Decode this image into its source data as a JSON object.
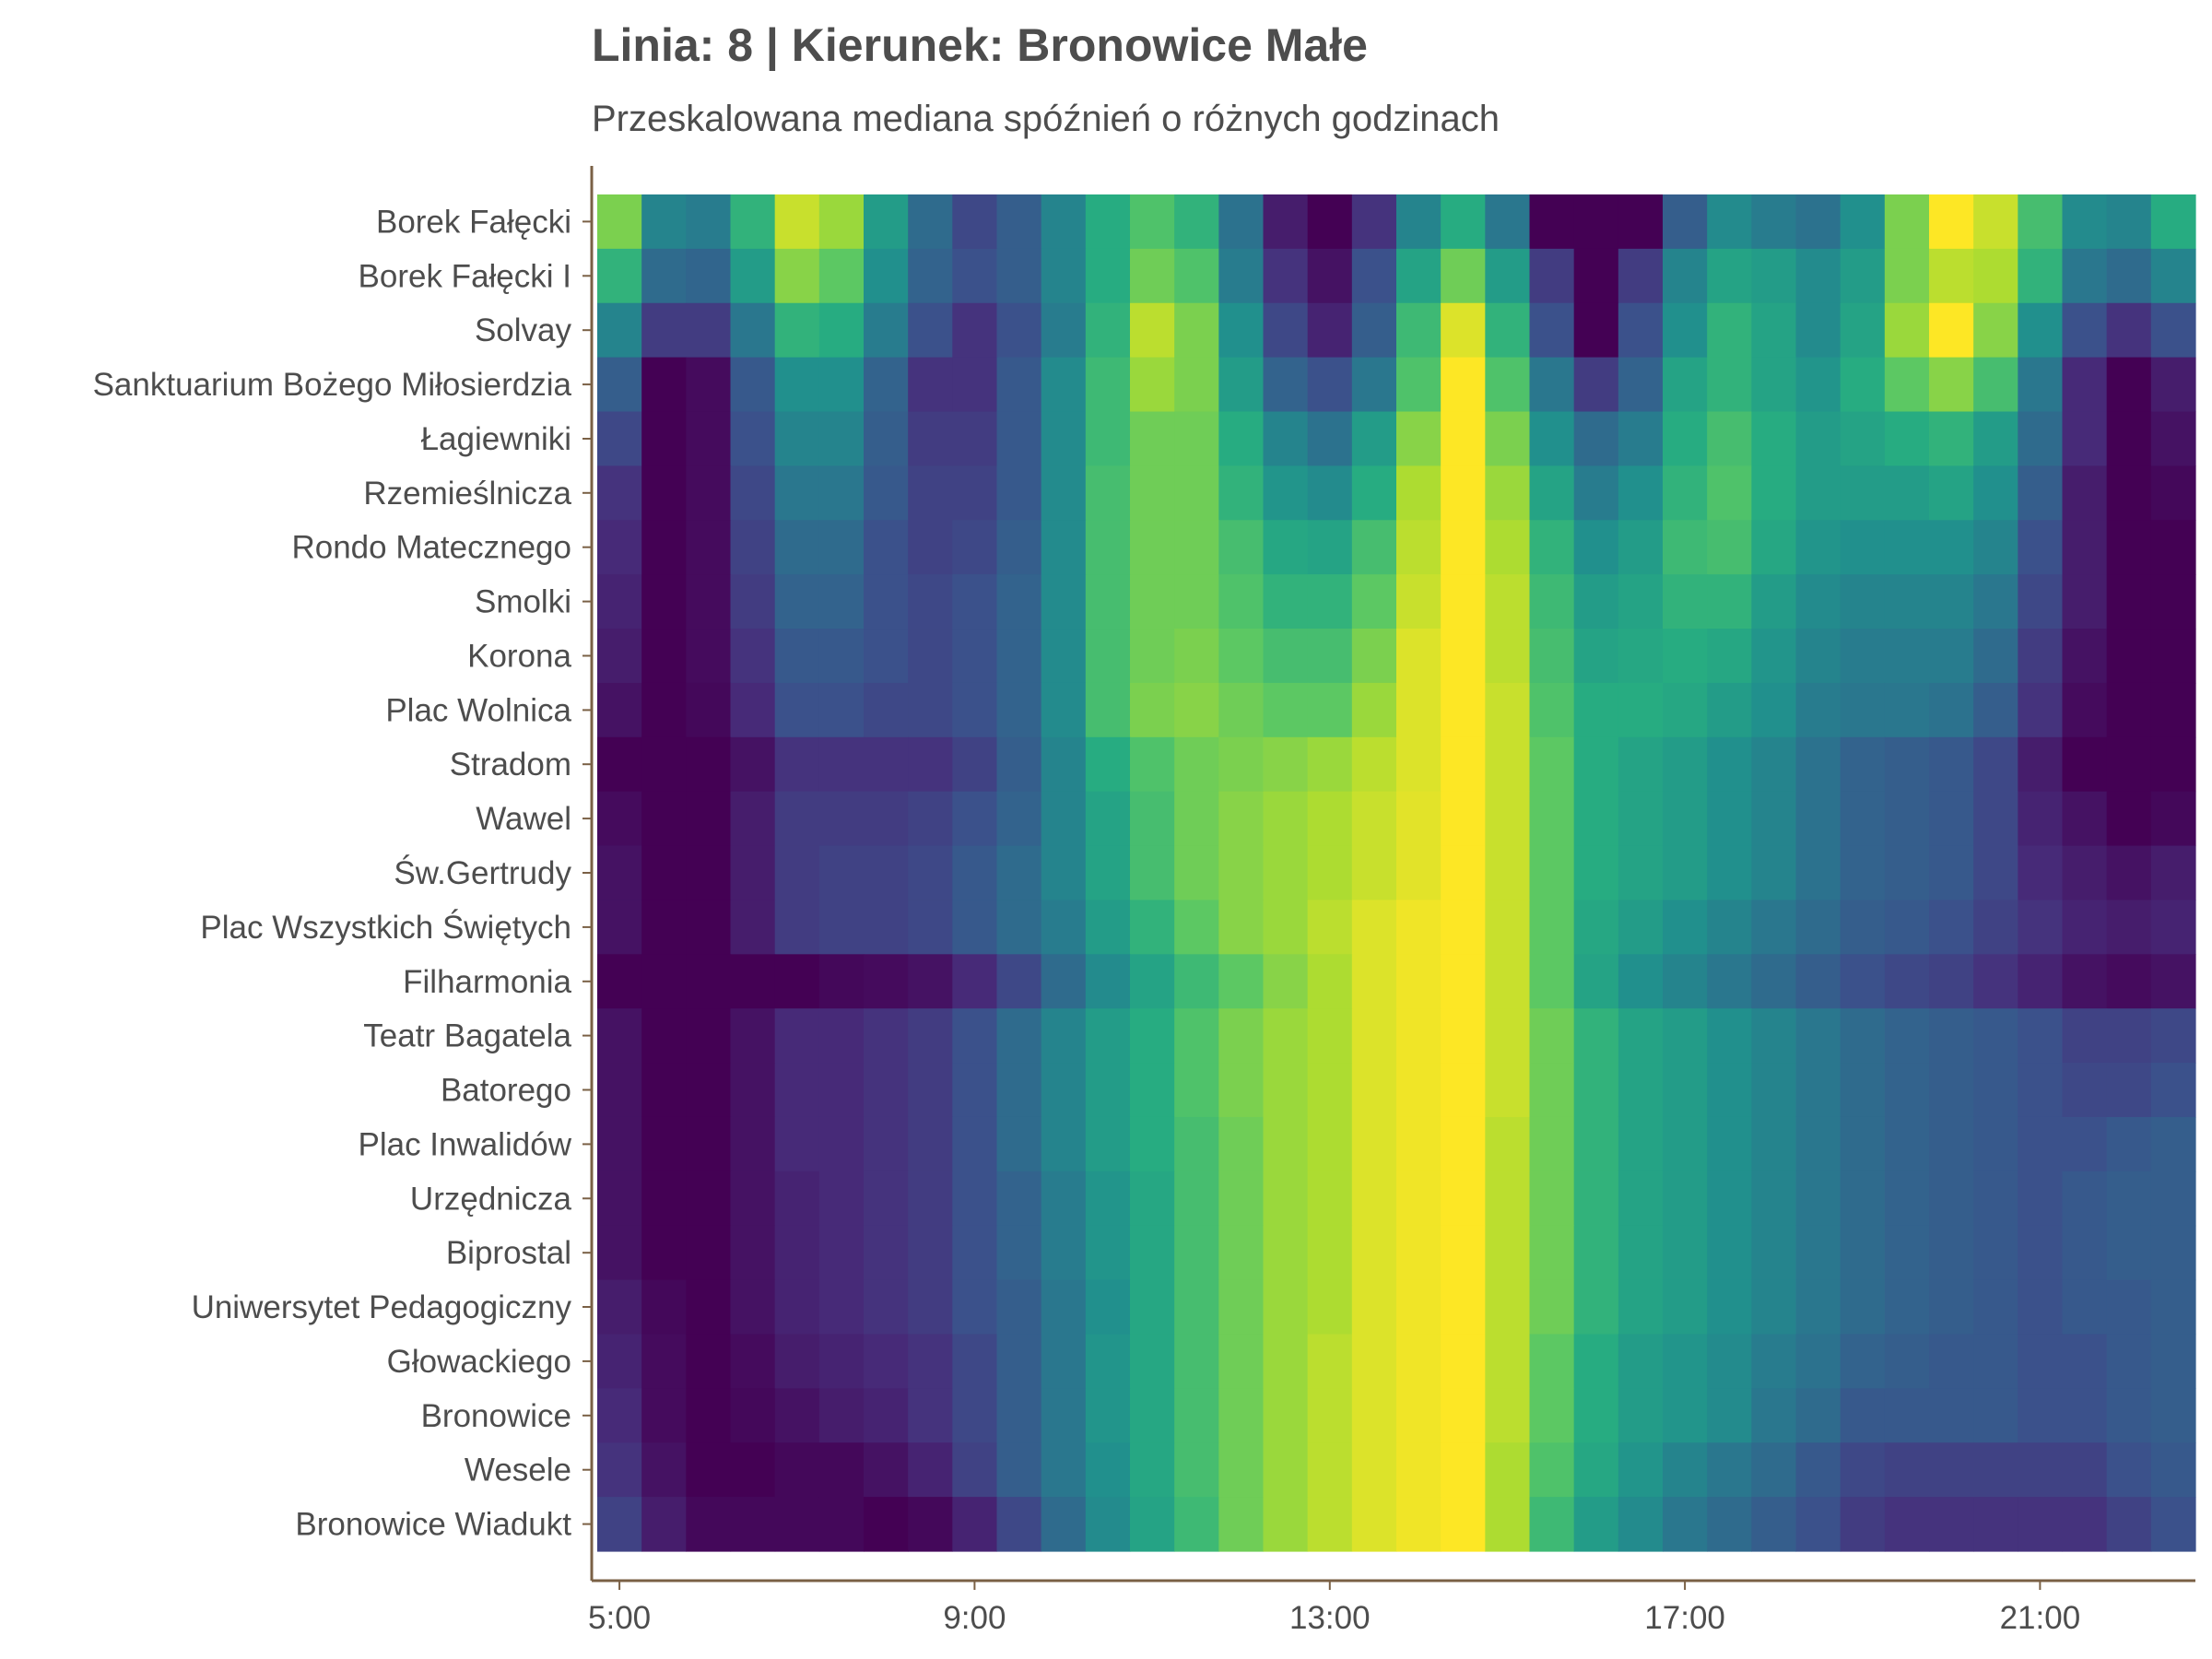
{
  "chart_data": {
    "type": "heatmap",
    "title": "Linia: 8 | Kierunek: Bronowice Małe",
    "subtitle": "Przeskalowana mediana spóźnień o różnych godzinach",
    "colormap": "viridis",
    "x_start_hour": 5,
    "x_step_hours": 0.5,
    "x_ticks": [
      {
        "hour": 5,
        "label": "5:00"
      },
      {
        "hour": 9,
        "label": "9:00"
      },
      {
        "hour": 13,
        "label": "13:00"
      },
      {
        "hour": 17,
        "label": "17:00"
      },
      {
        "hour": 21,
        "label": "21:00"
      }
    ],
    "stops": [
      "Borek Fałęcki",
      "Borek Fałęcki I",
      "Solvay",
      "Sanktuarium Bożego Miłosierdzia",
      "Łagiewniki",
      "Rzemieślnicza",
      "Rondo Matecznego",
      "Smolki",
      "Korona",
      "Plac Wolnica",
      "Stradom",
      "Wawel",
      "Św.Gertrudy",
      "Plac Wszystkich Świętych",
      "Filharmonia",
      "Teatr Bagatela",
      "Batorego",
      "Plac Inwalidów",
      "Urzędnicza",
      "Biprostal",
      "Uniwersytet Pedagogiczny",
      "Głowackiego",
      "Bronowice",
      "Wesele",
      "Bronowice Wiadukt"
    ],
    "values": [
      [
        0.8,
        0.45,
        0.42,
        0.65,
        0.92,
        0.85,
        0.55,
        0.35,
        0.22,
        0.3,
        0.45,
        0.62,
        0.72,
        0.65,
        0.38,
        0.08,
        0.0,
        0.15,
        0.45,
        0.62,
        0.4,
        0.0,
        0.0,
        0.0,
        0.3,
        0.48,
        0.42,
        0.38,
        0.5,
        0.8,
        1.0,
        0.92,
        0.7,
        0.48,
        0.45,
        0.62
      ],
      [
        0.65,
        0.35,
        0.33,
        0.55,
        0.82,
        0.75,
        0.5,
        0.32,
        0.25,
        0.3,
        0.45,
        0.62,
        0.78,
        0.72,
        0.42,
        0.15,
        0.05,
        0.25,
        0.58,
        0.78,
        0.55,
        0.18,
        0.0,
        0.18,
        0.45,
        0.58,
        0.55,
        0.48,
        0.55,
        0.8,
        0.9,
        0.88,
        0.65,
        0.4,
        0.35,
        0.45
      ],
      [
        0.45,
        0.18,
        0.18,
        0.4,
        0.65,
        0.62,
        0.42,
        0.25,
        0.15,
        0.25,
        0.42,
        0.65,
        0.9,
        0.8,
        0.5,
        0.22,
        0.1,
        0.3,
        0.68,
        0.95,
        0.65,
        0.25,
        0.0,
        0.25,
        0.5,
        0.65,
        0.58,
        0.48,
        0.58,
        0.85,
        1.0,
        0.82,
        0.5,
        0.25,
        0.15,
        0.25
      ],
      [
        0.3,
        0.0,
        0.03,
        0.28,
        0.5,
        0.5,
        0.32,
        0.15,
        0.15,
        0.28,
        0.48,
        0.68,
        0.85,
        0.8,
        0.55,
        0.32,
        0.25,
        0.4,
        0.72,
        1.0,
        0.72,
        0.4,
        0.18,
        0.32,
        0.58,
        0.65,
        0.58,
        0.52,
        0.62,
        0.75,
        0.82,
        0.7,
        0.4,
        0.12,
        0.0,
        0.08
      ],
      [
        0.22,
        0.0,
        0.03,
        0.25,
        0.45,
        0.45,
        0.3,
        0.18,
        0.18,
        0.28,
        0.48,
        0.68,
        0.78,
        0.78,
        0.62,
        0.45,
        0.38,
        0.55,
        0.82,
        1.0,
        0.8,
        0.5,
        0.35,
        0.42,
        0.62,
        0.7,
        0.62,
        0.55,
        0.58,
        0.62,
        0.65,
        0.55,
        0.35,
        0.12,
        0.0,
        0.05
      ],
      [
        0.15,
        0.0,
        0.03,
        0.22,
        0.4,
        0.4,
        0.28,
        0.2,
        0.2,
        0.28,
        0.48,
        0.7,
        0.78,
        0.78,
        0.65,
        0.52,
        0.48,
        0.62,
        0.88,
        1.0,
        0.85,
        0.58,
        0.42,
        0.5,
        0.65,
        0.72,
        0.62,
        0.55,
        0.55,
        0.55,
        0.58,
        0.5,
        0.3,
        0.08,
        0.0,
        0.02
      ],
      [
        0.12,
        0.0,
        0.03,
        0.2,
        0.35,
        0.35,
        0.25,
        0.2,
        0.22,
        0.3,
        0.48,
        0.7,
        0.78,
        0.78,
        0.7,
        0.6,
        0.58,
        0.7,
        0.9,
        1.0,
        0.88,
        0.65,
        0.5,
        0.55,
        0.68,
        0.7,
        0.6,
        0.52,
        0.5,
        0.5,
        0.5,
        0.45,
        0.25,
        0.08,
        0.0,
        0.0
      ],
      [
        0.1,
        0.0,
        0.03,
        0.18,
        0.32,
        0.32,
        0.25,
        0.22,
        0.25,
        0.32,
        0.48,
        0.7,
        0.78,
        0.78,
        0.72,
        0.65,
        0.65,
        0.75,
        0.92,
        1.0,
        0.9,
        0.68,
        0.55,
        0.58,
        0.65,
        0.65,
        0.55,
        0.48,
        0.45,
        0.45,
        0.45,
        0.4,
        0.22,
        0.08,
        0.0,
        0.0
      ],
      [
        0.08,
        0.0,
        0.03,
        0.15,
        0.28,
        0.28,
        0.25,
        0.22,
        0.25,
        0.32,
        0.48,
        0.7,
        0.78,
        0.8,
        0.75,
        0.7,
        0.7,
        0.8,
        0.95,
        1.0,
        0.9,
        0.7,
        0.58,
        0.6,
        0.62,
        0.6,
        0.52,
        0.45,
        0.42,
        0.42,
        0.42,
        0.35,
        0.18,
        0.05,
        0.0,
        0.0
      ],
      [
        0.05,
        0.0,
        0.02,
        0.12,
        0.25,
        0.25,
        0.22,
        0.22,
        0.25,
        0.32,
        0.48,
        0.7,
        0.8,
        0.82,
        0.78,
        0.75,
        0.75,
        0.85,
        0.95,
        1.0,
        0.92,
        0.72,
        0.62,
        0.62,
        0.6,
        0.55,
        0.5,
        0.42,
        0.4,
        0.4,
        0.38,
        0.3,
        0.15,
        0.03,
        0.0,
        0.0
      ],
      [
        0.0,
        0.0,
        0.0,
        0.05,
        0.15,
        0.15,
        0.15,
        0.15,
        0.2,
        0.3,
        0.45,
        0.62,
        0.72,
        0.78,
        0.8,
        0.82,
        0.85,
        0.9,
        0.95,
        1.0,
        0.92,
        0.75,
        0.62,
        0.58,
        0.55,
        0.5,
        0.45,
        0.38,
        0.32,
        0.3,
        0.28,
        0.22,
        0.08,
        0.0,
        0.0,
        0.0
      ],
      [
        0.03,
        0.0,
        0.0,
        0.08,
        0.18,
        0.18,
        0.18,
        0.2,
        0.25,
        0.32,
        0.45,
        0.58,
        0.7,
        0.78,
        0.82,
        0.85,
        0.88,
        0.92,
        0.96,
        1.0,
        0.92,
        0.75,
        0.62,
        0.58,
        0.55,
        0.5,
        0.45,
        0.38,
        0.32,
        0.3,
        0.28,
        0.22,
        0.1,
        0.05,
        0.0,
        0.02
      ],
      [
        0.05,
        0.0,
        0.0,
        0.08,
        0.18,
        0.2,
        0.2,
        0.22,
        0.28,
        0.35,
        0.45,
        0.58,
        0.7,
        0.78,
        0.82,
        0.85,
        0.88,
        0.92,
        0.96,
        1.0,
        0.92,
        0.75,
        0.62,
        0.58,
        0.55,
        0.5,
        0.45,
        0.38,
        0.32,
        0.3,
        0.28,
        0.22,
        0.12,
        0.08,
        0.05,
        0.08
      ],
      [
        0.05,
        0.0,
        0.0,
        0.08,
        0.18,
        0.2,
        0.2,
        0.22,
        0.28,
        0.35,
        0.42,
        0.55,
        0.65,
        0.75,
        0.82,
        0.85,
        0.9,
        0.95,
        0.98,
        1.0,
        0.92,
        0.75,
        0.6,
        0.55,
        0.5,
        0.45,
        0.4,
        0.35,
        0.3,
        0.28,
        0.25,
        0.2,
        0.15,
        0.1,
        0.08,
        0.1
      ],
      [
        0.0,
        0.0,
        0.0,
        0.0,
        0.0,
        0.02,
        0.03,
        0.05,
        0.12,
        0.22,
        0.35,
        0.48,
        0.58,
        0.68,
        0.75,
        0.82,
        0.88,
        0.95,
        0.98,
        1.0,
        0.92,
        0.75,
        0.58,
        0.5,
        0.45,
        0.4,
        0.35,
        0.3,
        0.25,
        0.22,
        0.2,
        0.15,
        0.1,
        0.05,
        0.03,
        0.05
      ],
      [
        0.05,
        0.0,
        0.0,
        0.05,
        0.12,
        0.12,
        0.15,
        0.18,
        0.25,
        0.35,
        0.45,
        0.55,
        0.62,
        0.72,
        0.8,
        0.85,
        0.88,
        0.95,
        0.98,
        1.0,
        0.92,
        0.78,
        0.65,
        0.58,
        0.55,
        0.5,
        0.45,
        0.4,
        0.35,
        0.32,
        0.3,
        0.28,
        0.25,
        0.2,
        0.2,
        0.22
      ],
      [
        0.05,
        0.0,
        0.0,
        0.05,
        0.12,
        0.12,
        0.15,
        0.18,
        0.25,
        0.35,
        0.45,
        0.55,
        0.62,
        0.72,
        0.8,
        0.85,
        0.88,
        0.95,
        0.98,
        1.0,
        0.92,
        0.78,
        0.65,
        0.58,
        0.55,
        0.5,
        0.45,
        0.4,
        0.35,
        0.32,
        0.3,
        0.28,
        0.25,
        0.22,
        0.22,
        0.25
      ],
      [
        0.05,
        0.0,
        0.0,
        0.05,
        0.12,
        0.12,
        0.15,
        0.18,
        0.25,
        0.35,
        0.45,
        0.55,
        0.62,
        0.7,
        0.78,
        0.85,
        0.88,
        0.95,
        0.98,
        1.0,
        0.9,
        0.78,
        0.65,
        0.58,
        0.55,
        0.5,
        0.45,
        0.4,
        0.35,
        0.32,
        0.3,
        0.28,
        0.25,
        0.25,
        0.28,
        0.3
      ],
      [
        0.05,
        0.0,
        0.0,
        0.05,
        0.1,
        0.12,
        0.15,
        0.18,
        0.25,
        0.32,
        0.42,
        0.52,
        0.6,
        0.7,
        0.78,
        0.85,
        0.88,
        0.95,
        0.98,
        1.0,
        0.9,
        0.78,
        0.65,
        0.58,
        0.55,
        0.5,
        0.45,
        0.4,
        0.35,
        0.32,
        0.3,
        0.28,
        0.25,
        0.28,
        0.3,
        0.3
      ],
      [
        0.05,
        0.0,
        0.0,
        0.05,
        0.1,
        0.12,
        0.15,
        0.18,
        0.25,
        0.32,
        0.42,
        0.52,
        0.6,
        0.7,
        0.78,
        0.85,
        0.88,
        0.95,
        0.98,
        1.0,
        0.9,
        0.78,
        0.65,
        0.58,
        0.55,
        0.5,
        0.45,
        0.4,
        0.35,
        0.32,
        0.3,
        0.28,
        0.25,
        0.28,
        0.3,
        0.3
      ],
      [
        0.08,
        0.02,
        0.0,
        0.05,
        0.1,
        0.12,
        0.15,
        0.18,
        0.25,
        0.3,
        0.4,
        0.5,
        0.6,
        0.7,
        0.78,
        0.85,
        0.88,
        0.95,
        0.98,
        1.0,
        0.9,
        0.78,
        0.65,
        0.58,
        0.55,
        0.5,
        0.45,
        0.4,
        0.35,
        0.32,
        0.3,
        0.28,
        0.25,
        0.28,
        0.28,
        0.3
      ],
      [
        0.1,
        0.03,
        0.0,
        0.03,
        0.08,
        0.1,
        0.12,
        0.15,
        0.22,
        0.3,
        0.4,
        0.52,
        0.6,
        0.7,
        0.78,
        0.85,
        0.9,
        0.95,
        0.98,
        1.0,
        0.9,
        0.75,
        0.62,
        0.55,
        0.52,
        0.48,
        0.42,
        0.38,
        0.32,
        0.3,
        0.28,
        0.28,
        0.25,
        0.25,
        0.28,
        0.3
      ],
      [
        0.12,
        0.03,
        0.0,
        0.02,
        0.05,
        0.08,
        0.1,
        0.15,
        0.22,
        0.3,
        0.4,
        0.52,
        0.6,
        0.7,
        0.78,
        0.85,
        0.9,
        0.95,
        0.98,
        1.0,
        0.9,
        0.75,
        0.62,
        0.55,
        0.52,
        0.48,
        0.4,
        0.35,
        0.28,
        0.28,
        0.28,
        0.28,
        0.25,
        0.25,
        0.28,
        0.3
      ],
      [
        0.15,
        0.05,
        0.0,
        0.0,
        0.02,
        0.02,
        0.05,
        0.1,
        0.2,
        0.3,
        0.4,
        0.5,
        0.6,
        0.7,
        0.78,
        0.85,
        0.9,
        0.95,
        0.98,
        1.0,
        0.88,
        0.72,
        0.6,
        0.52,
        0.45,
        0.4,
        0.35,
        0.28,
        0.22,
        0.2,
        0.2,
        0.2,
        0.2,
        0.2,
        0.25,
        0.28
      ],
      [
        0.2,
        0.08,
        0.02,
        0.02,
        0.02,
        0.02,
        0.0,
        0.02,
        0.1,
        0.22,
        0.35,
        0.48,
        0.58,
        0.68,
        0.78,
        0.85,
        0.9,
        0.95,
        0.98,
        1.0,
        0.88,
        0.68,
        0.55,
        0.48,
        0.4,
        0.35,
        0.3,
        0.25,
        0.18,
        0.15,
        0.15,
        0.15,
        0.15,
        0.15,
        0.2,
        0.25
      ]
    ]
  }
}
